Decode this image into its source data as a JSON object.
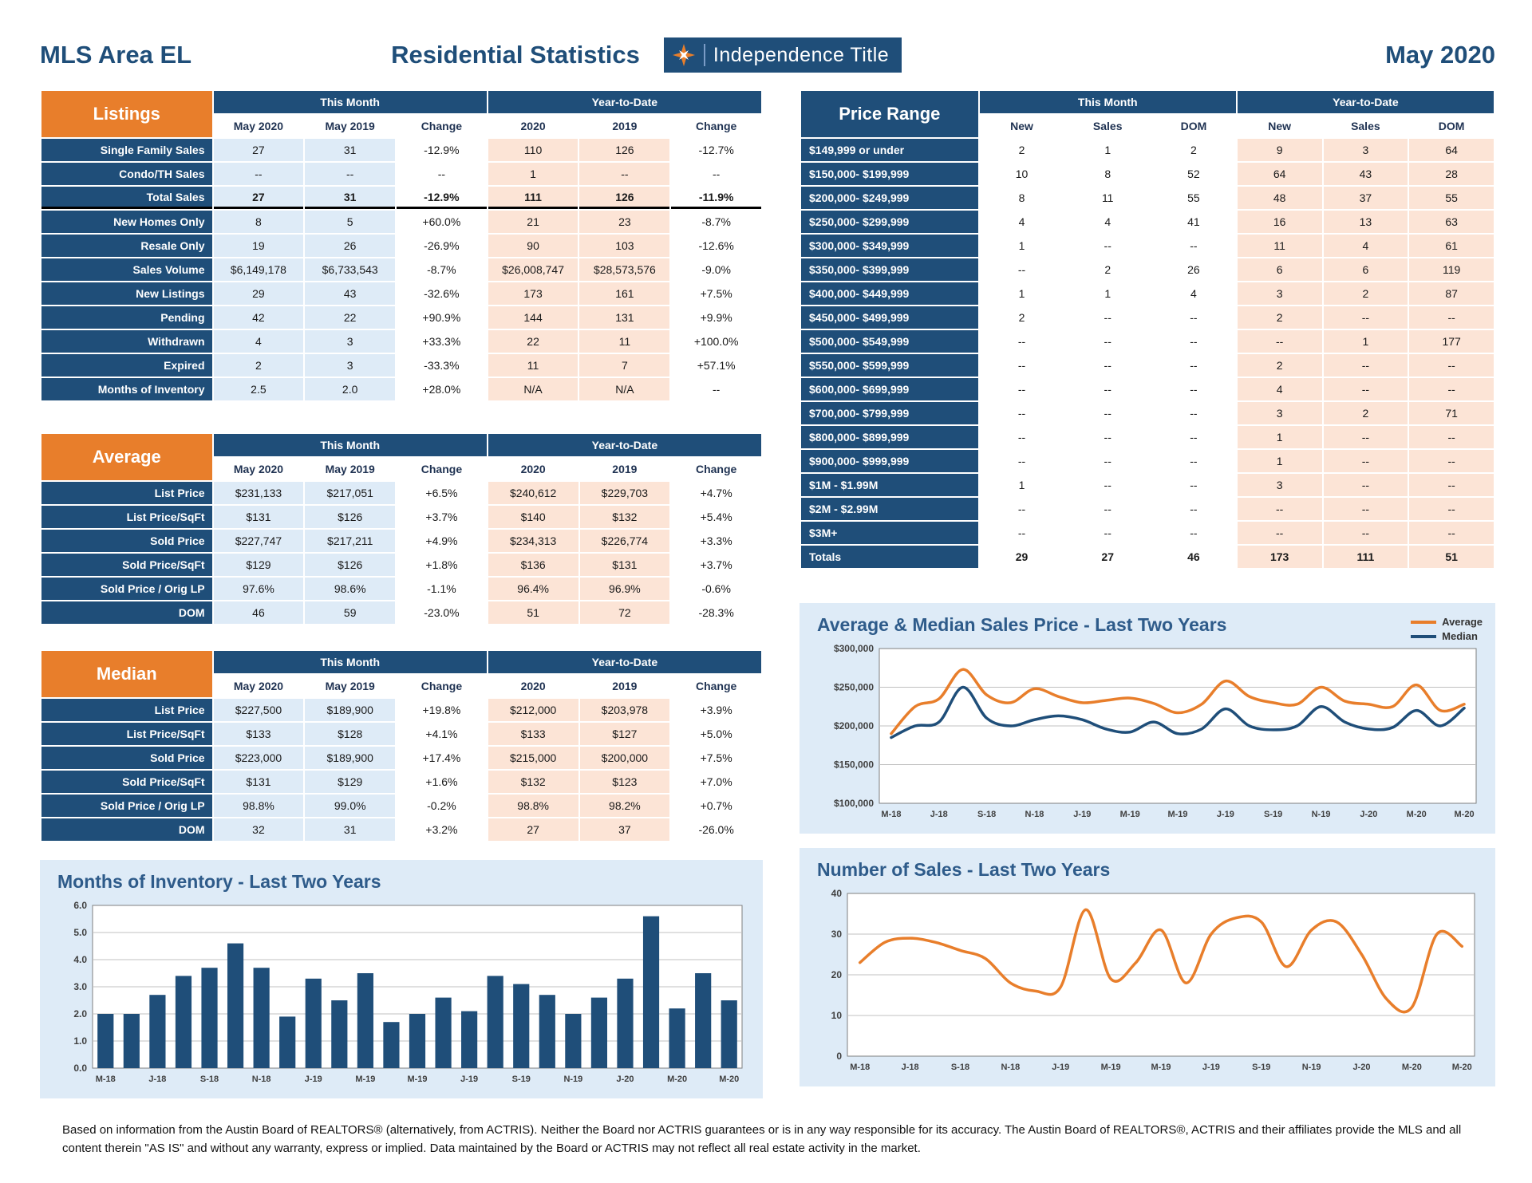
{
  "colors": {
    "navy": "#1F4E79",
    "orange": "#E87E2B",
    "light_blue": "#DEEBF7",
    "peach": "#FCE4D6"
  },
  "header": {
    "area": "MLS Area EL",
    "title": "Residential Statistics",
    "logo_text": "Independence Title",
    "date": "May 2020"
  },
  "tables": {
    "listings": {
      "tab": "Listings",
      "tab_style": "orange",
      "groups": [
        "This Month",
        "Year-to-Date"
      ],
      "columns": [
        "May 2020",
        "May 2019",
        "Change",
        "2020",
        "2019",
        "Change"
      ],
      "emphasis_row": 2,
      "rows": [
        {
          "label": "Single Family Sales",
          "values": [
            "27",
            "31",
            "-12.9%",
            "110",
            "126",
            "-12.7%"
          ]
        },
        {
          "label": "Condo/TH Sales",
          "values": [
            "--",
            "--",
            "--",
            "1",
            "--",
            "--"
          ]
        },
        {
          "label": "Total Sales",
          "values": [
            "27",
            "31",
            "-12.9%",
            "111",
            "126",
            "-11.9%"
          ]
        },
        {
          "label": "New Homes Only",
          "values": [
            "8",
            "5",
            "+60.0%",
            "21",
            "23",
            "-8.7%"
          ]
        },
        {
          "label": "Resale Only",
          "values": [
            "19",
            "26",
            "-26.9%",
            "90",
            "103",
            "-12.6%"
          ]
        },
        {
          "label": "Sales Volume",
          "values": [
            "$6,149,178",
            "$6,733,543",
            "-8.7%",
            "$26,008,747",
            "$28,573,576",
            "-9.0%"
          ]
        },
        {
          "label": "New Listings",
          "values": [
            "29",
            "43",
            "-32.6%",
            "173",
            "161",
            "+7.5%"
          ]
        },
        {
          "label": "Pending",
          "values": [
            "42",
            "22",
            "+90.9%",
            "144",
            "131",
            "+9.9%"
          ]
        },
        {
          "label": "Withdrawn",
          "values": [
            "4",
            "3",
            "+33.3%",
            "22",
            "11",
            "+100.0%"
          ]
        },
        {
          "label": "Expired",
          "values": [
            "2",
            "3",
            "-33.3%",
            "11",
            "7",
            "+57.1%"
          ]
        },
        {
          "label": "Months of Inventory",
          "values": [
            "2.5",
            "2.0",
            "+28.0%",
            "N/A",
            "N/A",
            "--"
          ]
        }
      ]
    },
    "average": {
      "tab": "Average",
      "tab_style": "orange",
      "groups": [
        "This Month",
        "Year-to-Date"
      ],
      "columns": [
        "May 2020",
        "May 2019",
        "Change",
        "2020",
        "2019",
        "Change"
      ],
      "rows": [
        {
          "label": "List Price",
          "values": [
            "$231,133",
            "$217,051",
            "+6.5%",
            "$240,612",
            "$229,703",
            "+4.7%"
          ]
        },
        {
          "label": "List Price/SqFt",
          "values": [
            "$131",
            "$126",
            "+3.7%",
            "$140",
            "$132",
            "+5.4%"
          ]
        },
        {
          "label": "Sold Price",
          "values": [
            "$227,747",
            "$217,211",
            "+4.9%",
            "$234,313",
            "$226,774",
            "+3.3%"
          ]
        },
        {
          "label": "Sold Price/SqFt",
          "values": [
            "$129",
            "$126",
            "+1.8%",
            "$136",
            "$131",
            "+3.7%"
          ]
        },
        {
          "label": "Sold Price / Orig LP",
          "values": [
            "97.6%",
            "98.6%",
            "-1.1%",
            "96.4%",
            "96.9%",
            "-0.6%"
          ]
        },
        {
          "label": "DOM",
          "values": [
            "46",
            "59",
            "-23.0%",
            "51",
            "72",
            "-28.3%"
          ]
        }
      ]
    },
    "median": {
      "tab": "Median",
      "tab_style": "orange",
      "groups": [
        "This Month",
        "Year-to-Date"
      ],
      "columns": [
        "May 2020",
        "May 2019",
        "Change",
        "2020",
        "2019",
        "Change"
      ],
      "rows": [
        {
          "label": "List Price",
          "values": [
            "$227,500",
            "$189,900",
            "+19.8%",
            "$212,000",
            "$203,978",
            "+3.9%"
          ]
        },
        {
          "label": "List Price/SqFt",
          "values": [
            "$133",
            "$128",
            "+4.1%",
            "$133",
            "$127",
            "+5.0%"
          ]
        },
        {
          "label": "Sold Price",
          "values": [
            "$223,000",
            "$189,900",
            "+17.4%",
            "$215,000",
            "$200,000",
            "+7.5%"
          ]
        },
        {
          "label": "Sold Price/SqFt",
          "values": [
            "$131",
            "$129",
            "+1.6%",
            "$132",
            "$123",
            "+7.0%"
          ]
        },
        {
          "label": "Sold Price / Orig LP",
          "values": [
            "98.8%",
            "99.0%",
            "-0.2%",
            "98.8%",
            "98.2%",
            "+0.7%"
          ]
        },
        {
          "label": "DOM",
          "values": [
            "32",
            "31",
            "+3.2%",
            "27",
            "37",
            "-26.0%"
          ]
        }
      ]
    },
    "price_range": {
      "tab": "Price Range",
      "tab_style": "navy",
      "groups": [
        "This Month",
        "Year-to-Date"
      ],
      "columns": [
        "New",
        "Sales",
        "DOM",
        "New",
        "Sales",
        "DOM"
      ],
      "rows": [
        {
          "label": "$149,999 or under",
          "values": [
            "2",
            "1",
            "2",
            "9",
            "3",
            "64"
          ]
        },
        {
          "label": "$150,000- $199,999",
          "values": [
            "10",
            "8",
            "52",
            "64",
            "43",
            "28"
          ]
        },
        {
          "label": "$200,000- $249,999",
          "values": [
            "8",
            "11",
            "55",
            "48",
            "37",
            "55"
          ]
        },
        {
          "label": "$250,000- $299,999",
          "values": [
            "4",
            "4",
            "41",
            "16",
            "13",
            "63"
          ]
        },
        {
          "label": "$300,000- $349,999",
          "values": [
            "1",
            "--",
            "--",
            "11",
            "4",
            "61"
          ]
        },
        {
          "label": "$350,000- $399,999",
          "values": [
            "--",
            "2",
            "26",
            "6",
            "6",
            "119"
          ]
        },
        {
          "label": "$400,000- $449,999",
          "values": [
            "1",
            "1",
            "4",
            "3",
            "2",
            "87"
          ]
        },
        {
          "label": "$450,000- $499,999",
          "values": [
            "2",
            "--",
            "--",
            "2",
            "--",
            "--"
          ]
        },
        {
          "label": "$500,000- $549,999",
          "values": [
            "--",
            "--",
            "--",
            "--",
            "1",
            "177"
          ]
        },
        {
          "label": "$550,000- $599,999",
          "values": [
            "--",
            "--",
            "--",
            "2",
            "--",
            "--"
          ]
        },
        {
          "label": "$600,000- $699,999",
          "values": [
            "--",
            "--",
            "--",
            "4",
            "--",
            "--"
          ]
        },
        {
          "label": "$700,000- $799,999",
          "values": [
            "--",
            "--",
            "--",
            "3",
            "2",
            "71"
          ]
        },
        {
          "label": "$800,000- $899,999",
          "values": [
            "--",
            "--",
            "--",
            "1",
            "--",
            "--"
          ]
        },
        {
          "label": "$900,000- $999,999",
          "values": [
            "--",
            "--",
            "--",
            "1",
            "--",
            "--"
          ]
        },
        {
          "label": "$1M - $1.99M",
          "values": [
            "1",
            "--",
            "--",
            "3",
            "--",
            "--"
          ]
        },
        {
          "label": "$2M - $2.99M",
          "values": [
            "--",
            "--",
            "--",
            "--",
            "--",
            "--"
          ]
        },
        {
          "label": "$3M+",
          "values": [
            "--",
            "--",
            "--",
            "--",
            "--",
            "--"
          ]
        }
      ],
      "totals": {
        "label": "Totals",
        "values": [
          "29",
          "27",
          "46",
          "173",
          "111",
          "51"
        ]
      }
    }
  },
  "chart_data": [
    {
      "type": "line",
      "title": "Average & Median Sales Price - Last Two Years",
      "n_points": 25,
      "x_labels": [
        "M-18",
        "J-18",
        "S-18",
        "N-18",
        "J-19",
        "M-19",
        "M-19",
        "J-19",
        "S-19",
        "N-19",
        "J-20",
        "M-20",
        "M-20"
      ],
      "ylim": [
        100000,
        300000
      ],
      "yticks": [
        {
          "v": 100000,
          "label": "$100,000"
        },
        {
          "v": 150000,
          "label": "$150,000"
        },
        {
          "v": 200000,
          "label": "$200,000"
        },
        {
          "v": 250000,
          "label": "$250,000"
        },
        {
          "v": 300000,
          "label": "$300,000"
        }
      ],
      "legend_position": "top-right",
      "grid": true,
      "series": [
        {
          "name": "Average",
          "color": "#E87E2B",
          "values": [
            190000,
            225000,
            235000,
            273000,
            240000,
            230000,
            248000,
            238000,
            230000,
            233000,
            236000,
            229000,
            217000,
            228000,
            258000,
            238000,
            230000,
            228000,
            250000,
            232000,
            228000,
            225000,
            253000,
            220000,
            228000
          ]
        },
        {
          "name": "Median",
          "color": "#1F4E79",
          "values": [
            185000,
            200000,
            205000,
            250000,
            210000,
            200000,
            208000,
            213000,
            208000,
            196000,
            192000,
            205000,
            190000,
            196000,
            222000,
            200000,
            195000,
            200000,
            225000,
            205000,
            196000,
            198000,
            220000,
            200000,
            223000
          ]
        }
      ]
    },
    {
      "type": "bar",
      "title": "Months of Inventory - Last Two Years",
      "n_points": 25,
      "x_labels": [
        "M-18",
        "J-18",
        "S-18",
        "N-18",
        "J-19",
        "M-19",
        "M-19",
        "J-19",
        "S-19",
        "N-19",
        "J-20",
        "M-20",
        "M-20"
      ],
      "ylim": [
        0,
        6
      ],
      "yticks": [
        {
          "v": 0,
          "label": "0.0"
        },
        {
          "v": 1,
          "label": "1.0"
        },
        {
          "v": 2,
          "label": "2.0"
        },
        {
          "v": 3,
          "label": "3.0"
        },
        {
          "v": 4,
          "label": "4.0"
        },
        {
          "v": 5,
          "label": "5.0"
        },
        {
          "v": 6,
          "label": "6.0"
        }
      ],
      "grid": true,
      "color": "#1F4E79",
      "values": [
        2.0,
        2.0,
        2.7,
        3.4,
        3.7,
        4.6,
        3.7,
        1.9,
        3.3,
        2.5,
        3.5,
        1.7,
        2.0,
        2.6,
        2.1,
        3.4,
        3.1,
        2.7,
        2.0,
        2.6,
        3.3,
        5.6,
        2.2,
        3.5,
        2.5
      ]
    },
    {
      "type": "line",
      "title": "Number of Sales - Last Two Years",
      "n_points": 25,
      "x_labels": [
        "M-18",
        "J-18",
        "S-18",
        "N-18",
        "J-19",
        "M-19",
        "M-19",
        "J-19",
        "S-19",
        "N-19",
        "J-20",
        "M-20",
        "M-20"
      ],
      "ylim": [
        0,
        40
      ],
      "yticks": [
        {
          "v": 0,
          "label": "0"
        },
        {
          "v": 10,
          "label": "10"
        },
        {
          "v": 20,
          "label": "20"
        },
        {
          "v": 30,
          "label": "30"
        },
        {
          "v": 40,
          "label": "40"
        }
      ],
      "grid": true,
      "series": [
        {
          "name": "Sales",
          "color": "#E87E2B",
          "values": [
            23,
            28,
            29,
            28,
            26,
            24,
            18,
            16,
            17,
            36,
            19,
            23,
            31,
            18,
            30,
            34,
            33,
            22,
            31,
            33,
            25,
            14,
            12,
            30,
            27
          ]
        }
      ]
    }
  ],
  "footer": {
    "disclaimer": "Based on information from the Austin Board of REALTORS® (alternatively, from ACTRIS). Neither the Board nor ACTRIS guarantees or is in any way responsible for its accuracy. The Austin Board of REALTORS®, ACTRIS and their affiliates provide the MLS and all content therein \"AS IS\" and without any warranty, express or implied. Data maintained by the Board or ACTRIS may not reflect all real estate activity in the market."
  }
}
